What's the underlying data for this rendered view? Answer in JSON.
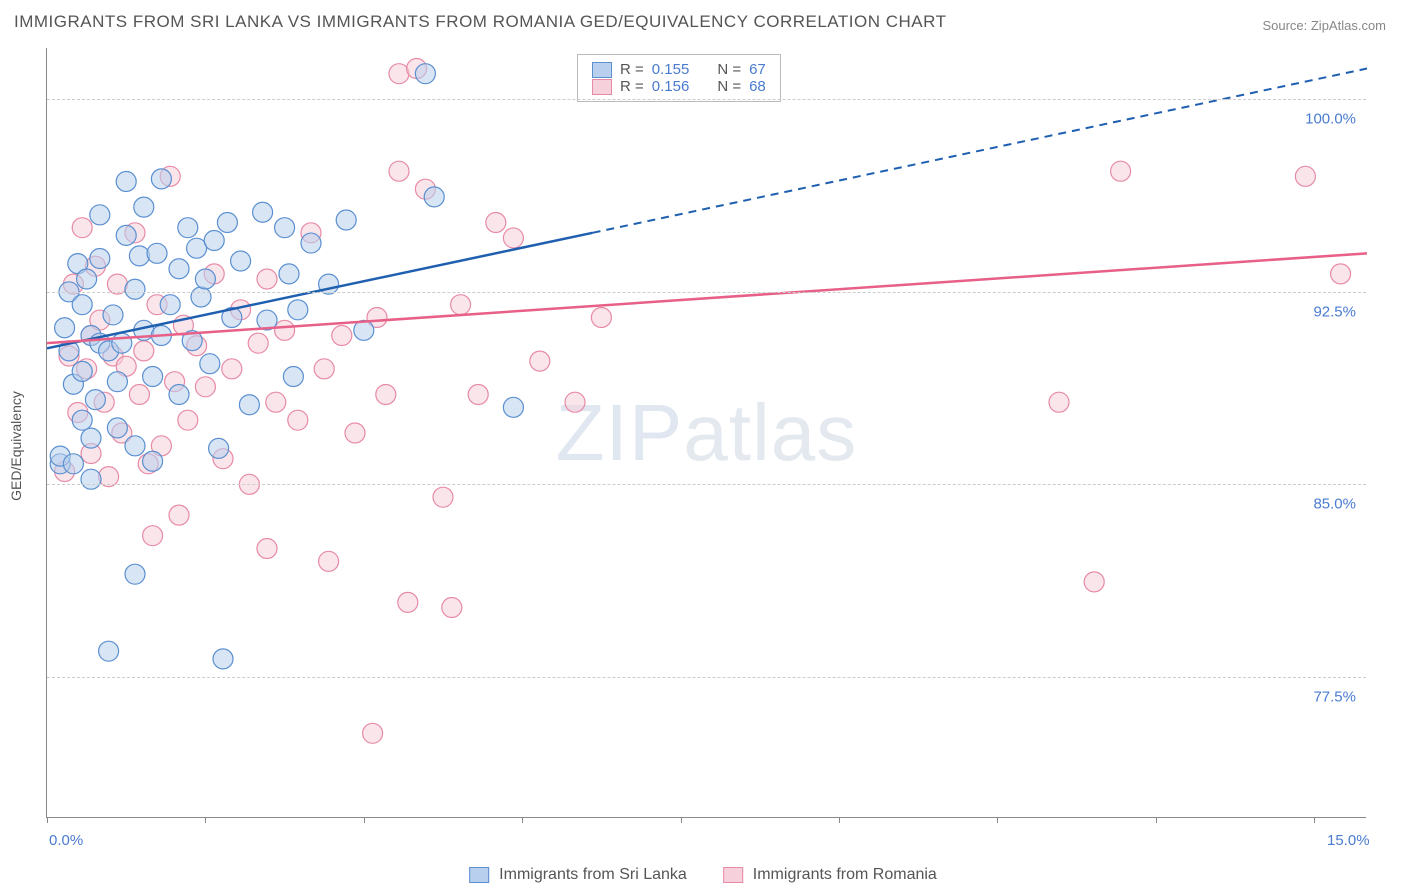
{
  "title": "IMMIGRANTS FROM SRI LANKA VS IMMIGRANTS FROM ROMANIA GED/EQUIVALENCY CORRELATION CHART",
  "source": "Source: ZipAtlas.com",
  "ylabel": "GED/Equivalency",
  "watermark_bold": "ZIP",
  "watermark_thin": "atlas",
  "chart": {
    "type": "scatter",
    "xlim": [
      0,
      15
    ],
    "ylim": [
      72,
      102
    ],
    "xticks": [
      0,
      1.8,
      3.6,
      5.4,
      7.2,
      9.0,
      10.8,
      12.6,
      14.4
    ],
    "xtick_labels": {
      "0": "0.0%",
      "15": "15.0%"
    },
    "ytick_values": [
      77.5,
      85.0,
      92.5,
      100.0
    ],
    "ytick_labels": [
      "77.5%",
      "85.0%",
      "92.5%",
      "100.0%"
    ],
    "background_color": "#ffffff",
    "grid_color": "#cccccc",
    "axis_color": "#888888",
    "marker_radius": 10,
    "marker_stroke_width": 1.2,
    "line_width": 2.5,
    "series": [
      {
        "name": "Immigrants from Sri Lanka",
        "fill": "#b8cfed",
        "stroke": "#5a8fd0",
        "line_color": "#1f5fb0",
        "r_value": "0.155",
        "n_value": "67",
        "points": [
          [
            0.15,
            85.8
          ],
          [
            0.15,
            86.1
          ],
          [
            0.2,
            91.1
          ],
          [
            0.25,
            90.2
          ],
          [
            0.25,
            92.5
          ],
          [
            0.3,
            85.8
          ],
          [
            0.3,
            88.9
          ],
          [
            0.35,
            93.6
          ],
          [
            0.4,
            87.5
          ],
          [
            0.4,
            89.4
          ],
          [
            0.4,
            92.0
          ],
          [
            0.45,
            93.0
          ],
          [
            0.5,
            85.2
          ],
          [
            0.5,
            86.8
          ],
          [
            0.5,
            90.8
          ],
          [
            0.55,
            88.3
          ],
          [
            0.6,
            90.5
          ],
          [
            0.6,
            93.8
          ],
          [
            0.6,
            95.5
          ],
          [
            0.7,
            78.5
          ],
          [
            0.7,
            90.2
          ],
          [
            0.75,
            91.6
          ],
          [
            0.8,
            87.2
          ],
          [
            0.8,
            89.0
          ],
          [
            0.85,
            90.5
          ],
          [
            0.9,
            94.7
          ],
          [
            0.9,
            96.8
          ],
          [
            1.0,
            81.5
          ],
          [
            1.0,
            86.5
          ],
          [
            1.0,
            92.6
          ],
          [
            1.05,
            93.9
          ],
          [
            1.1,
            91.0
          ],
          [
            1.1,
            95.8
          ],
          [
            1.2,
            85.9
          ],
          [
            1.2,
            89.2
          ],
          [
            1.25,
            94.0
          ],
          [
            1.3,
            96.9
          ],
          [
            1.3,
            90.8
          ],
          [
            1.4,
            92.0
          ],
          [
            1.5,
            88.5
          ],
          [
            1.5,
            93.4
          ],
          [
            1.6,
            95.0
          ],
          [
            1.65,
            90.6
          ],
          [
            1.7,
            94.2
          ],
          [
            1.75,
            92.3
          ],
          [
            1.8,
            93.0
          ],
          [
            1.85,
            89.7
          ],
          [
            1.9,
            94.5
          ],
          [
            1.95,
            86.4
          ],
          [
            2.0,
            78.2
          ],
          [
            2.05,
            95.2
          ],
          [
            2.1,
            91.5
          ],
          [
            2.2,
            93.7
          ],
          [
            2.3,
            88.1
          ],
          [
            2.45,
            95.6
          ],
          [
            2.5,
            91.4
          ],
          [
            2.7,
            95.0
          ],
          [
            2.75,
            93.2
          ],
          [
            2.8,
            89.2
          ],
          [
            2.85,
            91.8
          ],
          [
            3.0,
            94.4
          ],
          [
            3.2,
            92.8
          ],
          [
            3.4,
            95.3
          ],
          [
            3.6,
            91.0
          ],
          [
            4.3,
            101.0
          ],
          [
            4.4,
            96.2
          ],
          [
            5.3,
            88.0
          ]
        ],
        "trend": {
          "x1": 0,
          "y1": 90.3,
          "x2": 6.2,
          "y2": 94.8,
          "x2_ext": 15,
          "y2_ext": 101.2
        }
      },
      {
        "name": "Immigrants from Romania",
        "fill": "#f6d0da",
        "stroke": "#e78aa5",
        "line_color": "#e85f87",
        "r_value": "0.156",
        "n_value": "68",
        "points": [
          [
            0.2,
            85.5
          ],
          [
            0.25,
            90.0
          ],
          [
            0.3,
            92.8
          ],
          [
            0.35,
            87.8
          ],
          [
            0.4,
            95.0
          ],
          [
            0.45,
            89.5
          ],
          [
            0.5,
            90.8
          ],
          [
            0.5,
            86.2
          ],
          [
            0.55,
            93.5
          ],
          [
            0.6,
            91.4
          ],
          [
            0.65,
            88.2
          ],
          [
            0.7,
            85.3
          ],
          [
            0.75,
            90.0
          ],
          [
            0.8,
            92.8
          ],
          [
            0.85,
            87.0
          ],
          [
            0.9,
            89.6
          ],
          [
            1.0,
            94.8
          ],
          [
            1.05,
            88.5
          ],
          [
            1.1,
            90.2
          ],
          [
            1.15,
            85.8
          ],
          [
            1.2,
            83.0
          ],
          [
            1.25,
            92.0
          ],
          [
            1.3,
            86.5
          ],
          [
            1.4,
            97.0
          ],
          [
            1.45,
            89.0
          ],
          [
            1.5,
            83.8
          ],
          [
            1.55,
            91.2
          ],
          [
            1.6,
            87.5
          ],
          [
            1.7,
            90.4
          ],
          [
            1.8,
            88.8
          ],
          [
            1.9,
            93.2
          ],
          [
            2.0,
            86.0
          ],
          [
            2.1,
            89.5
          ],
          [
            2.2,
            91.8
          ],
          [
            2.3,
            85.0
          ],
          [
            2.4,
            90.5
          ],
          [
            2.5,
            82.5
          ],
          [
            2.5,
            93.0
          ],
          [
            2.6,
            88.2
          ],
          [
            2.7,
            91.0
          ],
          [
            2.85,
            87.5
          ],
          [
            3.0,
            94.8
          ],
          [
            3.15,
            89.5
          ],
          [
            3.2,
            82.0
          ],
          [
            3.35,
            90.8
          ],
          [
            3.5,
            87.0
          ],
          [
            3.7,
            75.3
          ],
          [
            3.75,
            91.5
          ],
          [
            3.85,
            88.5
          ],
          [
            4.0,
            97.2
          ],
          [
            4.0,
            101.0
          ],
          [
            4.1,
            80.4
          ],
          [
            4.2,
            101.2
          ],
          [
            4.3,
            96.5
          ],
          [
            4.5,
            84.5
          ],
          [
            4.6,
            80.2
          ],
          [
            4.7,
            92.0
          ],
          [
            4.9,
            88.5
          ],
          [
            5.1,
            95.2
          ],
          [
            5.3,
            94.6
          ],
          [
            5.6,
            89.8
          ],
          [
            6.0,
            88.2
          ],
          [
            6.3,
            91.5
          ],
          [
            11.5,
            88.2
          ],
          [
            11.9,
            81.2
          ],
          [
            12.2,
            97.2
          ],
          [
            14.3,
            97.0
          ],
          [
            14.7,
            93.2
          ]
        ],
        "trend": {
          "x1": 0,
          "y1": 90.5,
          "x2": 15,
          "y2": 94.0
        }
      }
    ]
  },
  "legend_box": {
    "r_label": "R =",
    "n_label": "N ="
  },
  "bottom_legend": [
    "Immigrants from Sri Lanka",
    "Immigrants from Romania"
  ]
}
